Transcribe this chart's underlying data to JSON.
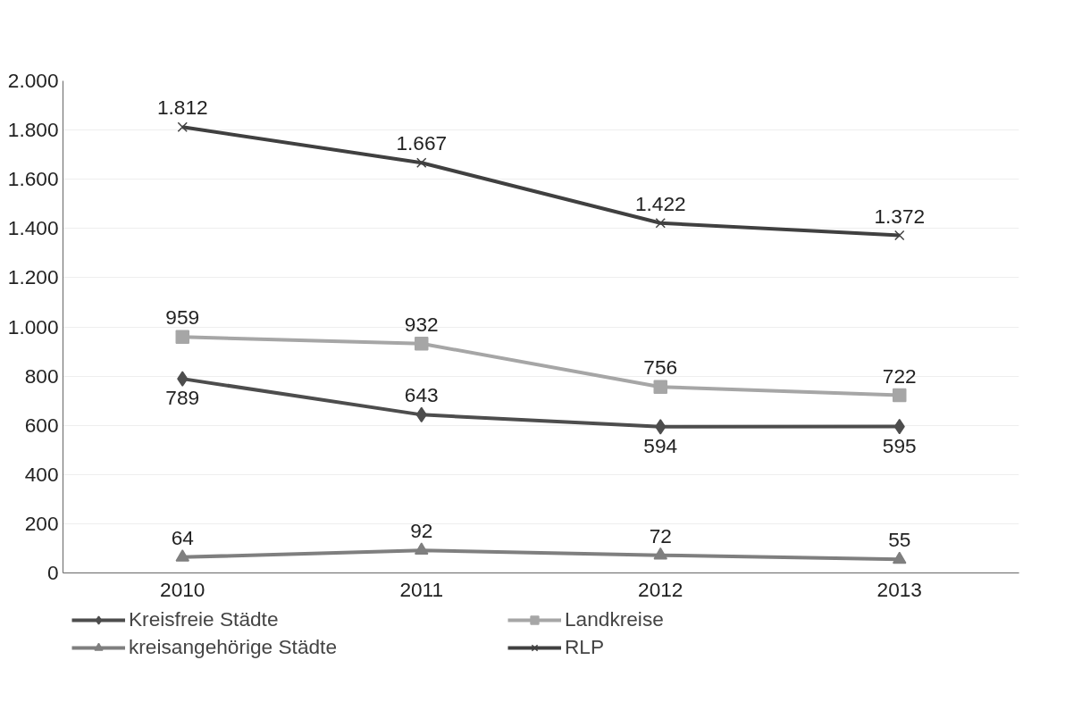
{
  "chart_data": {
    "type": "line",
    "categories": [
      "2010",
      "2011",
      "2012",
      "2013"
    ],
    "series": [
      {
        "name": "Kreisfreie Städte",
        "color": "#4d4d4d",
        "marker": "diamond",
        "values": [
          789,
          643,
          594,
          595
        ],
        "value_labels": [
          "789",
          "643",
          "594",
          "595"
        ]
      },
      {
        "name": "Landkreise",
        "color": "#a6a6a6",
        "marker": "square",
        "values": [
          959,
          932,
          756,
          722
        ],
        "value_labels": [
          "959",
          "932",
          "756",
          "722"
        ]
      },
      {
        "name": "kreisangehörige Städte",
        "color": "#7f7f7f",
        "marker": "triangle",
        "values": [
          64,
          92,
          72,
          55
        ],
        "value_labels": [
          "64",
          "92",
          "72",
          "55"
        ]
      },
      {
        "name": "RLP",
        "color": "#404040",
        "marker": "cross",
        "values": [
          1812,
          1667,
          1422,
          1372
        ],
        "value_labels": [
          "1.812",
          "1.667",
          "1.422",
          "1.372"
        ]
      }
    ],
    "ylim": [
      0,
      2000
    ],
    "yticks": [
      0,
      200,
      400,
      600,
      800,
      {
        "value": 1000,
        "label": "1.000"
      },
      {
        "value": 1200,
        "label": "1.200"
      },
      {
        "value": 1400,
        "label": "1.400"
      },
      {
        "value": 1600,
        "label": "1.600"
      },
      {
        "value": 1800,
        "label": "1.800"
      },
      {
        "value": 2000,
        "label": "2.000"
      }
    ],
    "grid": "y",
    "legend": "bottom",
    "line_style": "solid"
  }
}
